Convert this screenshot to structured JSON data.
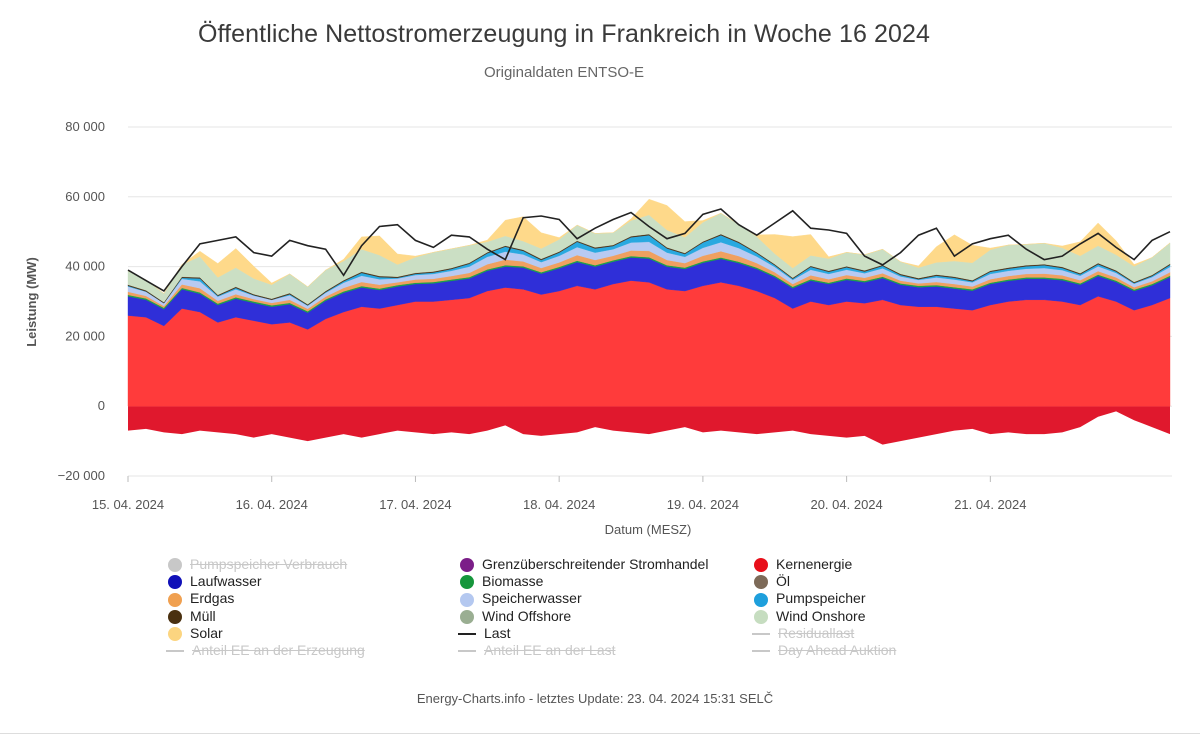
{
  "title": "Öffentliche Nettostromerzeugung in Frankreich in Woche 16 2024",
  "subtitle": "Originaldaten ENTSO-E",
  "footer": "Energy-Charts.info - letztes Update: 23. 04. 2024 15:31 SELČ",
  "chart_data": {
    "type": "area",
    "stacked": true,
    "xlabel": "Datum (MESZ)",
    "ylabel": "Leistung (MW)",
    "ylim": [
      -20000,
      80000
    ],
    "yticks": [
      80000,
      60000,
      40000,
      20000,
      0,
      -20000
    ],
    "ytick_labels": [
      "80 000",
      "60 000",
      "40 000",
      "20 000",
      "0",
      "−20 000"
    ],
    "xticks": [
      "15. 04. 2024",
      "16. 04. 2024",
      "17. 04. 2024",
      "18. 04. 2024",
      "19. 04. 2024",
      "20. 04. 2024",
      "21. 04. 2024"
    ],
    "x_start": "15. 04. 2024 00:00",
    "step_hours": 3,
    "grid": true,
    "legend_position": "bottom",
    "negative_series": {
      "name": "Grenzüberschreitender Stromhandel",
      "color": "#e0182d",
      "values": [
        -7000,
        -6500,
        -7500,
        -8000,
        -7000,
        -7500,
        -8000,
        -9000,
        -8000,
        -9000,
        -10000,
        -9000,
        -8000,
        -9000,
        -8000,
        -7000,
        -7500,
        -8000,
        -7500,
        -8000,
        -7000,
        -5500,
        -8000,
        -8500,
        -8000,
        -7500,
        -6000,
        -7000,
        -7500,
        -8000,
        -7000,
        -6000,
        -7500,
        -7000,
        -7500,
        -8000,
        -7500,
        -7000,
        -8000,
        -8500,
        -9000,
        -8500,
        -11000,
        -10000,
        -9000,
        -8000,
        -7000,
        -6500,
        -8000,
        -7500,
        -8000,
        -8000,
        -7500,
        -6000,
        -3000,
        -1500,
        -4000,
        -6000,
        -8000
      ]
    },
    "series": [
      {
        "name": "Kernenergie",
        "color": "#ff3b3b",
        "values": [
          26000,
          25500,
          23000,
          28000,
          27000,
          24000,
          25500,
          24500,
          23500,
          24000,
          22000,
          25000,
          27000,
          28500,
          28000,
          29000,
          30000,
          30000,
          30500,
          31000,
          33000,
          34000,
          33500,
          32000,
          33000,
          34500,
          33500,
          35000,
          36000,
          35500,
          33500,
          33000,
          34500,
          35500,
          34500,
          33000,
          31000,
          28000,
          30000,
          29000,
          30000,
          29500,
          30500,
          29000,
          28500,
          28500,
          28000,
          27500,
          29000,
          30000,
          30500,
          30500,
          30000,
          29000,
          31500,
          30000,
          27500,
          29000,
          31000
        ]
      },
      {
        "name": "Laufwasser",
        "color": "#2f2fd8",
        "values": [
          5500,
          5000,
          4800,
          5500,
          5200,
          5000,
          5300,
          5100,
          5000,
          5200,
          4800,
          5200,
          5500,
          5500,
          5300,
          5300,
          5000,
          5200,
          5400,
          5600,
          5800,
          6000,
          6200,
          6000,
          6500,
          6800,
          6500,
          6400,
          6600,
          6800,
          6500,
          6300,
          6600,
          6700,
          6500,
          6300,
          6000,
          5800,
          6000,
          6000,
          6200,
          6000,
          6200,
          5800,
          5600,
          5800,
          5700,
          5600,
          6000,
          5900,
          6000,
          6000,
          6100,
          5800,
          5800,
          5600,
          5500,
          5600,
          6000
        ]
      },
      {
        "name": "Biomasse",
        "color": "#1aa04a",
        "values": [
          400,
          400,
          400,
          400,
          400,
          400,
          400,
          400,
          400,
          400,
          400,
          400,
          400,
          400,
          400,
          400,
          400,
          400,
          400,
          400,
          400,
          400,
          400,
          400,
          400,
          400,
          400,
          400,
          400,
          400,
          400,
          400,
          400,
          400,
          400,
          400,
          400,
          400,
          400,
          400,
          400,
          400,
          400,
          400,
          400,
          400,
          400,
          400,
          400,
          400,
          400,
          400,
          400,
          400,
          400,
          400,
          400,
          400,
          400
        ]
      },
      {
        "name": "Erdgas",
        "color": "#f0a060",
        "values": [
          900,
          700,
          500,
          1000,
          1200,
          800,
          900,
          700,
          700,
          900,
          700,
          800,
          1000,
          1200,
          1100,
          800,
          900,
          900,
          1000,
          1200,
          1500,
          1600,
          1400,
          1200,
          1300,
          1600,
          1500,
          1300,
          1600,
          1800,
          1500,
          1300,
          1600,
          1800,
          1600,
          1300,
          1000,
          800,
          1100,
          1000,
          1000,
          900,
          1000,
          800,
          700,
          900,
          900,
          800,
          1000,
          1000,
          1000,
          1100,
          1000,
          900,
          1000,
          900,
          700,
          800,
          1000
        ]
      },
      {
        "name": "Speicherwasser",
        "color": "#b8caf2",
        "values": [
          1500,
          1200,
          800,
          1600,
          2000,
          1200,
          1400,
          1000,
          900,
          1300,
          900,
          1100,
          1500,
          1800,
          1600,
          1100,
          1300,
          1400,
          1500,
          1800,
          2100,
          2300,
          2000,
          1700,
          1900,
          2300,
          2100,
          1900,
          2300,
          2600,
          2100,
          1800,
          2300,
          2600,
          2300,
          1900,
          1500,
          1200,
          1600,
          1500,
          1500,
          1300,
          1400,
          1200,
          1000,
          1300,
          1300,
          1200,
          1500,
          1500,
          1500,
          1600,
          1500,
          1300,
          1400,
          1300,
          1000,
          1200,
          1500
        ]
      },
      {
        "name": "Pumpspeicher",
        "color": "#29a9e0",
        "values": [
          200,
          100,
          0,
          300,
          800,
          200,
          400,
          100,
          0,
          300,
          100,
          200,
          400,
          800,
          600,
          200,
          300,
          400,
          500,
          800,
          1000,
          1400,
          1000,
          600,
          900,
          1500,
          1200,
          900,
          1500,
          1900,
          1200,
          800,
          1500,
          2000,
          1500,
          900,
          500,
          300,
          800,
          600,
          700,
          500,
          700,
          400,
          200,
          500,
          500,
          300,
          600,
          600,
          700,
          800,
          600,
          400,
          600,
          400,
          200,
          300,
          600
        ]
      },
      {
        "name": "Müll",
        "color": "#4d3319",
        "values": [
          300,
          300,
          300,
          300,
          300,
          300,
          300,
          300,
          300,
          300,
          300,
          300,
          300,
          300,
          300,
          300,
          300,
          300,
          300,
          300,
          300,
          300,
          300,
          300,
          300,
          300,
          300,
          300,
          300,
          300,
          300,
          300,
          300,
          300,
          300,
          300,
          300,
          300,
          300,
          300,
          300,
          300,
          300,
          300,
          300,
          300,
          300,
          300,
          300,
          300,
          300,
          300,
          300,
          300,
          300,
          300,
          300,
          300,
          300
        ]
      },
      {
        "name": "Wind Onshore",
        "color": "#cbdfc4",
        "values": [
          4000,
          3000,
          2500,
          3500,
          6000,
          5000,
          5500,
          4500,
          4000,
          5500,
          5000,
          6000,
          5500,
          6500,
          6000,
          3500,
          4500,
          5500,
          5500,
          5000,
          3000,
          2800,
          2500,
          3000,
          3500,
          4500,
          4000,
          3500,
          4500,
          5500,
          5000,
          4500,
          5500,
          6000,
          5000,
          4500,
          3000,
          2800,
          3000,
          3500,
          4000,
          4500,
          4500,
          3500,
          3000,
          3500,
          4500,
          5000,
          6000,
          6500,
          6000,
          6000,
          5500,
          5000,
          5000,
          4500,
          4500,
          5000,
          6000
        ]
      },
      {
        "name": "Solar",
        "color": "#fed98a",
        "values": [
          0,
          0,
          0,
          0,
          1500,
          4000,
          5500,
          3500,
          500,
          0,
          0,
          0,
          500,
          3500,
          5500,
          3000,
          300,
          0,
          0,
          0,
          500,
          4500,
          7000,
          4500,
          500,
          0,
          0,
          0,
          500,
          4500,
          7000,
          4500,
          500,
          0,
          0,
          500,
          5500,
          9000,
          6000,
          500,
          0,
          0,
          0,
          0,
          500,
          4500,
          7500,
          5000,
          500,
          0,
          0,
          0,
          500,
          4000,
          6500,
          4000,
          500,
          0,
          0
        ]
      }
    ],
    "line_series": [
      {
        "name": "Last",
        "color": "#222222",
        "values": [
          39000,
          36000,
          33000,
          40000,
          46500,
          47500,
          48500,
          44000,
          43000,
          47500,
          46000,
          45000,
          37500,
          46000,
          51500,
          52000,
          47500,
          45500,
          49000,
          48500,
          45000,
          42000,
          54000,
          54500,
          53500,
          48000,
          51000,
          53500,
          55500,
          51500,
          48000,
          49500,
          55000,
          56500,
          52000,
          49000,
          52500,
          56000,
          51000,
          50500,
          49500,
          43000,
          40500,
          44000,
          49000,
          51000,
          43000,
          46500,
          48000,
          49000,
          45000,
          42000,
          43000,
          46500,
          49500,
          45500,
          42000,
          47500,
          50000
        ]
      }
    ],
    "legend": [
      {
        "label": "Pumpspeicher Verbrauch",
        "color": "#c8c8c8",
        "symbol": "dot",
        "enabled": false
      },
      {
        "label": "Grenzüberschreitender Stromhandel",
        "color": "#7b1e88",
        "symbol": "dot",
        "enabled": true
      },
      {
        "label": "Kernenergie",
        "color": "#e80f1a",
        "symbol": "dot",
        "enabled": true
      },
      {
        "label": "Laufwasser",
        "color": "#1010b8",
        "symbol": "dot",
        "enabled": true
      },
      {
        "label": "Biomasse",
        "color": "#16963c",
        "symbol": "dot",
        "enabled": true
      },
      {
        "label": "Öl",
        "color": "#7d6a58",
        "symbol": "dot",
        "enabled": true
      },
      {
        "label": "Erdgas",
        "color": "#f0a050",
        "symbol": "dot",
        "enabled": true
      },
      {
        "label": "Speicherwasser",
        "color": "#b4c8f0",
        "symbol": "dot",
        "enabled": true
      },
      {
        "label": "Pumpspeicher",
        "color": "#1e9fdc",
        "symbol": "dot",
        "enabled": true
      },
      {
        "label": "Müll",
        "color": "#4a3010",
        "symbol": "dot",
        "enabled": true
      },
      {
        "label": "Wind Offshore",
        "color": "#9aae92",
        "symbol": "dot",
        "enabled": true
      },
      {
        "label": "Wind Onshore",
        "color": "#c6ddc0",
        "symbol": "dot",
        "enabled": true
      },
      {
        "label": "Solar",
        "color": "#fcd580",
        "symbol": "dot",
        "enabled": true
      },
      {
        "label": "Last",
        "color": "#222222",
        "symbol": "line",
        "enabled": true
      },
      {
        "label": "Residuallast",
        "color": "#c8c8c8",
        "symbol": "line",
        "enabled": false
      },
      {
        "label": "Anteil EE an der Erzeugung",
        "color": "#c8c8c8",
        "symbol": "line",
        "enabled": false
      },
      {
        "label": "Anteil EE an der Last",
        "color": "#c8c8c8",
        "symbol": "line",
        "enabled": false
      },
      {
        "label": "Day Ahead Auktion",
        "color": "#c8c8c8",
        "symbol": "line",
        "enabled": false
      }
    ]
  }
}
